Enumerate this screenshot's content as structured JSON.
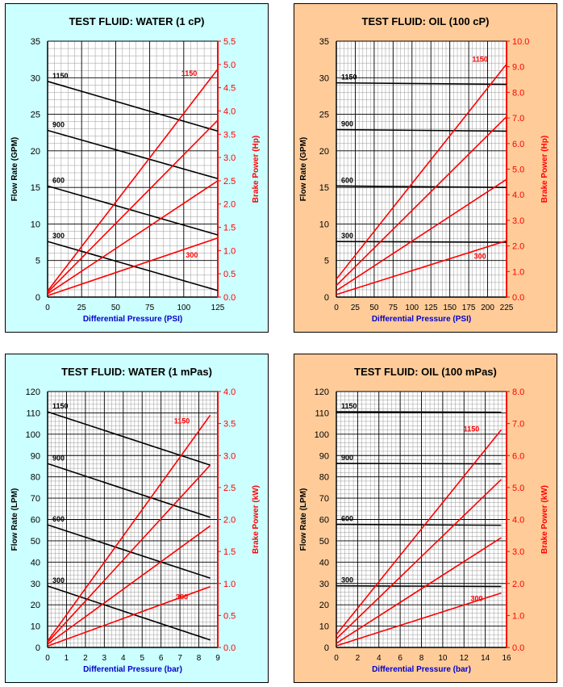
{
  "colors": {
    "water_bg": "#ccffff",
    "oil_bg": "#ffcc99",
    "flow_line": "#000000",
    "power_line": "#ff0000",
    "grid_major": "#000000",
    "grid_minor": "#999999"
  },
  "chart_data": [
    {
      "type": "line",
      "title": "TEST FLUID:  WATER (1 cP)",
      "xlabel": "Differential Pressure (PSI)",
      "ylabel": "Flow Rate (GPM)",
      "y2label": "Brake Power (Hp)",
      "xlim": [
        0,
        125
      ],
      "ylim": [
        0,
        35
      ],
      "y2lim": [
        0,
        5.5
      ],
      "xticks": [
        "0",
        "25",
        "50",
        "75",
        "100",
        "125"
      ],
      "yticks": [
        "0",
        "5",
        "10",
        "15",
        "20",
        "25",
        "30",
        "35"
      ],
      "y2ticks": [
        "0.0",
        "0.5",
        "1.0",
        "1.5",
        "2.0",
        "2.5",
        "3.0",
        "3.5",
        "4.0",
        "4.5",
        "5.0",
        "5.5"
      ],
      "grid": true,
      "flow_series": [
        {
          "name": "1150",
          "x": [
            0,
            125
          ],
          "y": [
            29.5,
            22.7
          ]
        },
        {
          "name": "900",
          "x": [
            0,
            125
          ],
          "y": [
            22.8,
            16.2
          ]
        },
        {
          "name": "600",
          "x": [
            0,
            125
          ],
          "y": [
            15.2,
            8.5
          ]
        },
        {
          "name": "300",
          "x": [
            0,
            125
          ],
          "y": [
            7.6,
            0.9
          ]
        }
      ],
      "power_series": [
        {
          "name": "1150",
          "x": [
            0,
            125
          ],
          "y": [
            0.13,
            4.9
          ]
        },
        {
          "name": "900",
          "x": [
            0,
            125
          ],
          "y": [
            0.1,
            3.8
          ]
        },
        {
          "name": "600",
          "x": [
            0,
            125
          ],
          "y": [
            0.07,
            2.5
          ]
        },
        {
          "name": "300",
          "x": [
            0,
            125
          ],
          "y": [
            0.03,
            1.27
          ]
        }
      ],
      "power_labels": [
        {
          "text": "1150",
          "x": 104,
          "y": 4.75
        },
        {
          "text": "300",
          "x": 106,
          "y": 0.85
        }
      ]
    },
    {
      "type": "line",
      "title": "TEST FLUID:  OIL (100 cP)",
      "xlabel": "Differential Pressure (PSI)",
      "ylabel": "Flow Rate (GPM)",
      "y2label": "Brake Power (Hp)",
      "xlim": [
        0,
        225
      ],
      "ylim": [
        0,
        35
      ],
      "y2lim": [
        0,
        10
      ],
      "xticks": [
        "0",
        "25",
        "50",
        "75",
        "100",
        "125",
        "150",
        "175",
        "200",
        "225"
      ],
      "yticks": [
        "0",
        "5",
        "10",
        "15",
        "20",
        "25",
        "30",
        "35"
      ],
      "y2ticks": [
        "0.0",
        "1.0",
        "2.0",
        "3.0",
        "4.0",
        "5.0",
        "6.0",
        "7.0",
        "8.0",
        "9.0",
        "10.0"
      ],
      "grid": true,
      "flow_series": [
        {
          "name": "1150",
          "x": [
            0,
            225
          ],
          "y": [
            29.3,
            29.1
          ]
        },
        {
          "name": "900",
          "x": [
            0,
            225
          ],
          "y": [
            22.9,
            22.7
          ]
        },
        {
          "name": "600",
          "x": [
            0,
            225
          ],
          "y": [
            15.2,
            15.0
          ]
        },
        {
          "name": "300",
          "x": [
            0,
            225
          ],
          "y": [
            7.6,
            7.5
          ]
        }
      ],
      "power_series": [
        {
          "name": "1150",
          "x": [
            0,
            225
          ],
          "y": [
            0.7,
            9.1
          ]
        },
        {
          "name": "900",
          "x": [
            0,
            225
          ],
          "y": [
            0.45,
            7.05
          ]
        },
        {
          "name": "600",
          "x": [
            0,
            225
          ],
          "y": [
            0.25,
            4.6
          ]
        },
        {
          "name": "300",
          "x": [
            0,
            225
          ],
          "y": [
            0.1,
            2.2
          ]
        }
      ],
      "power_labels": [
        {
          "text": "1150",
          "x": 190,
          "y": 9.2
        },
        {
          "text": "300",
          "x": 190,
          "y": 1.5
        }
      ]
    },
    {
      "type": "line",
      "title": "TEST FLUID:  WATER (1 mPas)",
      "xlabel": "Differential Pressure (bar)",
      "ylabel": "Flow Rate (LPM)",
      "y2label": "Brake Power (kW)",
      "xlim": [
        0,
        9
      ],
      "ylim": [
        0,
        120
      ],
      "y2lim": [
        0,
        4
      ],
      "xticks": [
        "0",
        "1",
        "2",
        "3",
        "4",
        "5",
        "6",
        "7",
        "8",
        "9"
      ],
      "yticks": [
        "0",
        "10",
        "20",
        "30",
        "40",
        "50",
        "60",
        "70",
        "80",
        "90",
        "100",
        "110",
        "120"
      ],
      "y2ticks": [
        "0.0",
        "0.5",
        "1.0",
        "1.5",
        "2.0",
        "2.5",
        "3.0",
        "3.5",
        "4.0"
      ],
      "grid": true,
      "flow_series": [
        {
          "name": "1150",
          "x": [
            0,
            8.6
          ],
          "y": [
            110.5,
            85.5
          ]
        },
        {
          "name": "900",
          "x": [
            0,
            8.6
          ],
          "y": [
            86.2,
            61
          ]
        },
        {
          "name": "600",
          "x": [
            0,
            8.6
          ],
          "y": [
            57.5,
            32.5
          ]
        },
        {
          "name": "300",
          "x": [
            0,
            8.6
          ],
          "y": [
            28.8,
            3.5
          ]
        }
      ],
      "power_series": [
        {
          "name": "1150",
          "x": [
            0,
            8.6
          ],
          "y": [
            0.1,
            3.63
          ]
        },
        {
          "name": "900",
          "x": [
            0,
            8.6
          ],
          "y": [
            0.08,
            2.85
          ]
        },
        {
          "name": "600",
          "x": [
            0,
            8.6
          ],
          "y": [
            0.05,
            1.9
          ]
        },
        {
          "name": "300",
          "x": [
            0,
            8.6
          ],
          "y": [
            0.02,
            0.95
          ]
        }
      ],
      "power_labels": [
        {
          "text": "1150",
          "x": 7.1,
          "y": 3.5
        },
        {
          "text": "300",
          "x": 7.1,
          "y": 0.75
        }
      ]
    },
    {
      "type": "line",
      "title": "TEST FLUID:  OIL (100 mPas)",
      "xlabel": "Differential Pressure (bar)",
      "ylabel": "Flow Rate (LPM)",
      "y2label": "Brake Power (kW)",
      "xlim": [
        0,
        16
      ],
      "ylim": [
        0,
        120
      ],
      "y2lim": [
        0,
        8
      ],
      "xticks": [
        "0",
        "2",
        "4",
        "6",
        "8",
        "10",
        "12",
        "14",
        "16"
      ],
      "yticks": [
        "0",
        "10",
        "20",
        "30",
        "40",
        "50",
        "60",
        "70",
        "80",
        "90",
        "100",
        "110",
        "120"
      ],
      "y2ticks": [
        "0.0",
        "1.0",
        "2.0",
        "3.0",
        "4.0",
        "5.0",
        "6.0",
        "7.0",
        "8.0"
      ],
      "grid": true,
      "flow_series": [
        {
          "name": "1150",
          "x": [
            0,
            15.5
          ],
          "y": [
            110.5,
            110.3
          ]
        },
        {
          "name": "900",
          "x": [
            0,
            15.5
          ],
          "y": [
            86.3,
            86.1
          ]
        },
        {
          "name": "600",
          "x": [
            0,
            15.5
          ],
          "y": [
            57.7,
            57.3
          ]
        },
        {
          "name": "300",
          "x": [
            0,
            15.5
          ],
          "y": [
            28.9,
            28.6
          ]
        }
      ],
      "power_series": [
        {
          "name": "1150",
          "x": [
            0,
            15.5
          ],
          "y": [
            0.4,
            6.8
          ]
        },
        {
          "name": "900",
          "x": [
            0,
            15.5
          ],
          "y": [
            0.27,
            5.25
          ]
        },
        {
          "name": "600",
          "x": [
            0,
            15.5
          ],
          "y": [
            0.13,
            3.43
          ]
        },
        {
          "name": "300",
          "x": [
            0,
            15.5
          ],
          "y": [
            0.05,
            1.7
          ]
        }
      ],
      "power_labels": [
        {
          "text": "1150",
          "x": 12.7,
          "y": 6.75
        },
        {
          "text": "300",
          "x": 13.2,
          "y": 1.45
        }
      ]
    }
  ]
}
